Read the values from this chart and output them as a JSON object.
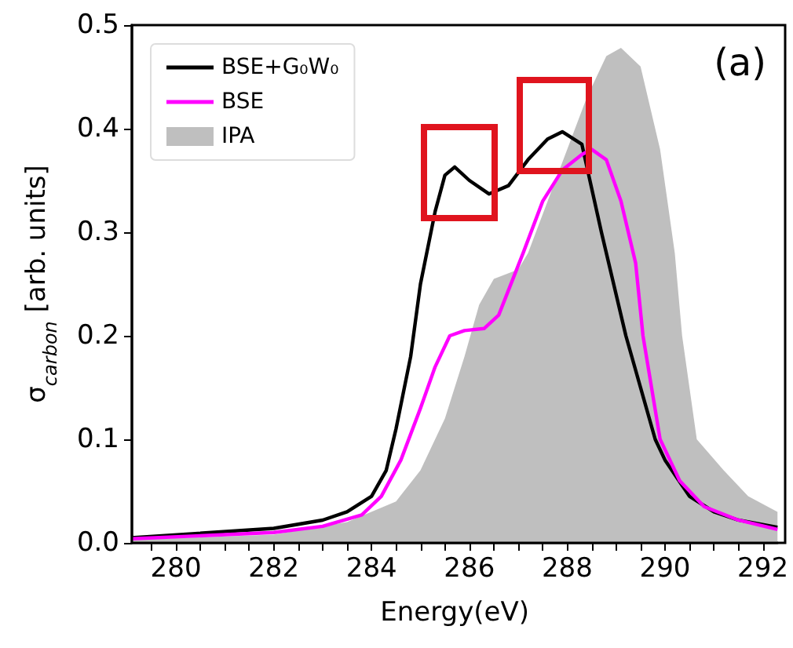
{
  "chart_data": {
    "type": "line",
    "xlabel": "Energy(eV)",
    "ylabel": "σ$_{carbon}$ [arb. units]",
    "annotations": [
      "(a)"
    ],
    "xlim": [
      279.1,
      292.3
    ],
    "xticks": [
      {
        "value": 279.5,
        "label": null
      },
      280,
      {
        "value": 280.5,
        "label": null
      },
      {
        "value": 281,
        "label": null
      },
      {
        "value": 281.5,
        "label": null
      },
      282,
      {
        "value": 282.5,
        "label": null
      },
      {
        "value": 283,
        "label": null
      },
      {
        "value": 283.5,
        "label": null
      },
      284,
      {
        "value": 284.5,
        "label": null
      },
      {
        "value": 285,
        "label": null
      },
      {
        "value": 285.5,
        "label": null
      },
      286,
      {
        "value": 286.5,
        "label": null
      },
      {
        "value": 287,
        "label": null
      },
      {
        "value": 287.5,
        "label": null
      },
      288,
      {
        "value": 288.5,
        "label": null
      },
      {
        "value": 289,
        "label": null
      },
      {
        "value": 289.5,
        "label": null
      },
      290,
      {
        "value": 290.5,
        "label": null
      },
      {
        "value": 291,
        "label": null
      },
      {
        "value": 291.5,
        "label": null
      },
      292
    ],
    "ylim": [
      0,
      0.5
    ],
    "yticks": [
      {
        "value": 0,
        "label": "0.0"
      },
      0.1,
      0.2,
      0.3,
      0.4,
      0.5
    ],
    "grid": false,
    "legend": "top left",
    "marker": "none",
    "series": [
      {
        "name": "BSE+G₀W₀",
        "color": "#000000",
        "x": [
          279.1,
          282,
          283,
          283.5,
          284,
          284.3,
          284.5,
          284.8,
          285,
          285.3,
          285.5,
          285.7,
          286,
          286.4,
          286.8,
          287.2,
          287.6,
          287.9,
          288.3,
          288.7,
          289.2,
          289.8,
          290,
          290.5,
          291,
          291.5,
          292.3
        ],
        "values": [
          0.005,
          0.014,
          0.022,
          0.03,
          0.045,
          0.07,
          0.11,
          0.18,
          0.25,
          0.32,
          0.355,
          0.363,
          0.35,
          0.337,
          0.345,
          0.37,
          0.39,
          0.397,
          0.385,
          0.3,
          0.2,
          0.1,
          0.08,
          0.045,
          0.03,
          0.022,
          0.015
        ]
      },
      {
        "name": "BSE",
        "color": "#ff00ff",
        "x": [
          279.1,
          282,
          283,
          283.8,
          284.2,
          284.6,
          285,
          285.3,
          285.6,
          285.9,
          286.3,
          286.6,
          287.1,
          287.5,
          287.9,
          288.3,
          288.5,
          288.8,
          289.1,
          289.4,
          289.55,
          289.9,
          290.3,
          290.8,
          291.5,
          292.3
        ],
        "values": [
          0.004,
          0.01,
          0.016,
          0.027,
          0.045,
          0.08,
          0.13,
          0.17,
          0.2,
          0.205,
          0.207,
          0.22,
          0.28,
          0.33,
          0.36,
          0.375,
          0.38,
          0.37,
          0.33,
          0.27,
          0.2,
          0.1,
          0.06,
          0.035,
          0.022,
          0.013
        ]
      },
      {
        "name": "IPA",
        "type": "area",
        "color": "#bfbfbf",
        "x": [
          279.1,
          282,
          283.5,
          284.5,
          285,
          285.5,
          285.9,
          286.2,
          286.5,
          287,
          287.2,
          287.6,
          288,
          288.4,
          288.8,
          289.1,
          289.5,
          289.9,
          290.2,
          290.35,
          290.65,
          291.2,
          291.7,
          292.3
        ],
        "values": [
          0.003,
          0.008,
          0.02,
          0.04,
          0.07,
          0.12,
          0.18,
          0.23,
          0.255,
          0.264,
          0.28,
          0.33,
          0.38,
          0.43,
          0.47,
          0.478,
          0.46,
          0.38,
          0.28,
          0.2,
          0.1,
          0.07,
          0.045,
          0.03
        ]
      }
    ]
  }
}
